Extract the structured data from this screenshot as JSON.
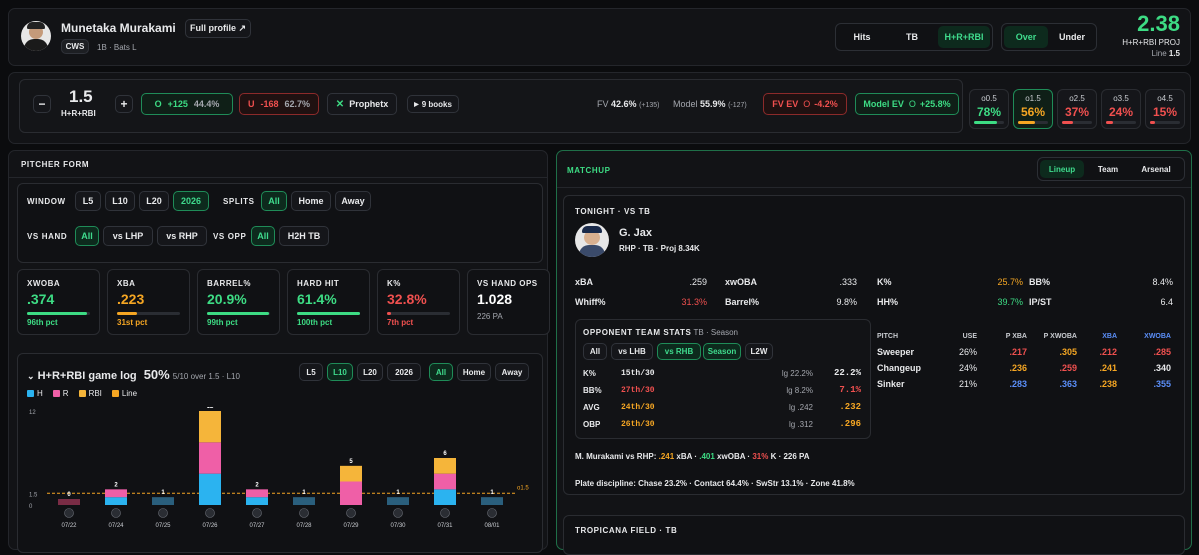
{
  "player": {
    "name": "Munetaka Murakami",
    "full_profile": "Full profile ↗",
    "team": "CWS",
    "pos": "1B · Bats L"
  },
  "market_tabs": [
    "Hits",
    "TB",
    "H+R+RBI"
  ],
  "side_tabs": [
    "Over",
    "Under"
  ],
  "projection": {
    "value": "2.38",
    "label": "H+R+RBI PROJ",
    "line_label": "Line",
    "line_value": "1.5"
  },
  "line": {
    "minus": "−",
    "plus": "+",
    "value": "1.5",
    "stat": "H+R+RBI"
  },
  "odds": {
    "over": {
      "prefix": "O",
      "price": "+125",
      "pct": "44.4%"
    },
    "under": {
      "prefix": "U",
      "price": "-168",
      "pct": "62.7%"
    }
  },
  "book": "Prophetx",
  "books_count": "9 books",
  "fv": {
    "label": "FV",
    "pct": "42.6%",
    "odds": "(+135)"
  },
  "model": {
    "label": "Model",
    "pct": "55.9%",
    "odds": "(-127)"
  },
  "fv_ev": {
    "label": "FV EV",
    "prefix": "O",
    "value": "-4.2%"
  },
  "model_ev": {
    "label": "Model EV",
    "prefix": "O",
    "value": "+25.8%"
  },
  "alt_lines": [
    {
      "label": "o0.5",
      "pct": "78%",
      "fill": 0.78,
      "color": "#3ddc84"
    },
    {
      "label": "o1.5",
      "pct": "56%",
      "fill": 0.56,
      "color": "#f5a623"
    },
    {
      "label": "o2.5",
      "pct": "37%",
      "fill": 0.37,
      "color": "#f0504f"
    },
    {
      "label": "o3.5",
      "pct": "24%",
      "fill": 0.24,
      "color": "#f0504f"
    },
    {
      "label": "o4.5",
      "pct": "15%",
      "fill": 0.15,
      "color": "#f0504f"
    }
  ],
  "pitcher_form": {
    "title": "PITCHER FORM",
    "window_label": "WINDOW",
    "window_opts": [
      "L5",
      "L10",
      "L20",
      "2026"
    ],
    "splits_label": "SPLITS",
    "splits_opts": [
      "All",
      "Home",
      "Away"
    ],
    "vs_hand_label": "VS HAND",
    "vs_hand_opts": [
      "All",
      "vs LHP",
      "vs RHP"
    ],
    "vs_opp_label": "VS OPP",
    "vs_opp_opts": [
      "All",
      "H2H TB"
    ],
    "stats": [
      {
        "label": "XWOBA",
        "value": ".374",
        "pct": "96th pct",
        "fill": 0.96,
        "color": "#3ddc84"
      },
      {
        "label": "XBA",
        "value": ".223",
        "pct": "31st pct",
        "fill": 0.31,
        "color": "#f5a623"
      },
      {
        "label": "BARREL%",
        "value": "20.9%",
        "pct": "99th pct",
        "fill": 0.99,
        "color": "#3ddc84"
      },
      {
        "label": "HARD HIT",
        "value": "61.4%",
        "pct": "100th pct",
        "fill": 1.0,
        "color": "#3ddc84"
      },
      {
        "label": "K%",
        "value": "32.8%",
        "pct": "7th pct",
        "fill": 0.07,
        "color": "#f0504f"
      },
      {
        "label": "VS HAND OPS",
        "value": "1.028",
        "pct": "226 PA"
      }
    ]
  },
  "game_log": {
    "title": "H+R+RBI game log",
    "rate": "50%",
    "detail": "5/10 over 1.5 · L10",
    "window_opts": [
      "L5",
      "L10",
      "L20",
      "2026"
    ],
    "split_opts": [
      "All",
      "Home",
      "Away"
    ],
    "legend": [
      {
        "name": "H",
        "color": "#2bb3f0"
      },
      {
        "name": "R",
        "color": "#ef5fa7"
      },
      {
        "name": "RBI",
        "color": "#f5b53a"
      },
      {
        "name": "Line",
        "color": "#f5a623"
      }
    ],
    "y_ticks": [
      "12",
      "1.5",
      "0"
    ],
    "line_label": "o1.5"
  },
  "chart_data": {
    "type": "bar",
    "stacked": true,
    "categories": [
      "07/22",
      "07/24",
      "07/25",
      "07/26",
      "07/27",
      "07/28",
      "07/29",
      "07/30",
      "07/31",
      "08/01"
    ],
    "series": [
      {
        "name": "H",
        "values": [
          0,
          1,
          1,
          4,
          1,
          1,
          0,
          1,
          2,
          1
        ]
      },
      {
        "name": "R",
        "values": [
          0,
          1,
          0,
          4,
          1,
          0,
          3,
          0,
          2,
          0
        ]
      },
      {
        "name": "RBI",
        "values": [
          0,
          0,
          0,
          4,
          0,
          0,
          2,
          0,
          2,
          0
        ]
      }
    ],
    "totals": [
      "0",
      "2",
      "1",
      "12",
      "2",
      "1",
      "5",
      "1",
      "6",
      "1"
    ],
    "line": 1.5,
    "ylim": [
      0,
      12
    ]
  },
  "matchup": {
    "title": "MATCHUP",
    "tabs": [
      "Lineup",
      "Team",
      "Arsenal"
    ],
    "tonight": "TONIGHT · VS TB",
    "pitcher_name": "G. Jax",
    "pitcher_info": "RHP · TB · Proj 8.34K",
    "stats": [
      {
        "label": "xBA",
        "value": ".259",
        "color": "#e8e9eb"
      },
      {
        "label": "xwOBA",
        "value": ".333",
        "color": "#e8e9eb"
      },
      {
        "label": "K%",
        "value": "25.7%",
        "color": "#f5a623"
      },
      {
        "label": "BB%",
        "value": "8.4%",
        "color": "#e8e9eb"
      },
      {
        "label": "Whiff%",
        "value": "31.3%",
        "color": "#f0504f"
      },
      {
        "label": "Barrel%",
        "value": "9.8%",
        "color": "#e8e9eb"
      },
      {
        "label": "HH%",
        "value": "39.7%",
        "color": "#3ddc84"
      },
      {
        "label": "IP/ST",
        "value": "6.4",
        "color": "#e8e9eb"
      }
    ],
    "opp_title": "OPPONENT TEAM STATS",
    "opp_sub": "TB · Season",
    "opp_opts": [
      "All",
      "vs LHB",
      "vs RHB",
      "Season",
      "L2W"
    ],
    "opp_rows": [
      {
        "label": "K%",
        "rank": "15th/30",
        "lg": "lg 22.2%",
        "value": "22.2%",
        "rank_color": "#e8e9eb",
        "val_color": "#e8e9eb"
      },
      {
        "label": "BB%",
        "rank": "27th/30",
        "lg": "lg 8.2%",
        "value": "7.1%",
        "rank_color": "#f0504f",
        "val_color": "#f0504f"
      },
      {
        "label": "AVG",
        "rank": "24th/30",
        "lg": "lg .242",
        "value": ".232",
        "rank_color": "#f5a623",
        "val_color": "#f5a623"
      },
      {
        "label": "OBP",
        "rank": "26th/30",
        "lg": "lg .312",
        "value": ".296",
        "rank_color": "#f5a623",
        "val_color": "#f5a623"
      }
    ],
    "pitch_headers": [
      "PITCH",
      "USE",
      "P XBA",
      "P XWOBA",
      "XBA",
      "XWOBA"
    ],
    "pitches": [
      {
        "name": "Sweeper",
        "use": "26%",
        "pxba": ".217",
        "pxwoba": ".305",
        "xba": ".212",
        "xwoba": ".285",
        "c": [
          "#f0504f",
          "#f5a623",
          "#f0504f",
          "#f0504f"
        ]
      },
      {
        "name": "Changeup",
        "use": "24%",
        "pxba": ".236",
        "pxwoba": ".259",
        "xba": ".241",
        "xwoba": ".340",
        "c": [
          "#f5a623",
          "#f0504f",
          "#f5a623",
          "#e8e9eb"
        ]
      },
      {
        "name": "Sinker",
        "use": "21%",
        "pxba": ".283",
        "pxwoba": ".363",
        "xba": ".238",
        "xwoba": ".355",
        "c": [
          "#5b8ff9",
          "#5b8ff9",
          "#f5a623",
          "#5b8ff9"
        ]
      }
    ],
    "vs_line": {
      "prefix": "M. Murakami vs RHP:",
      "xba": ".241",
      "xba_l": "xBA ·",
      "xwoba": ".401",
      "xwoba_l": "xwOBA ·",
      "k": "31%",
      "k_l": "K ·",
      "pa": "226 PA"
    },
    "discipline": "Plate discipline: Chase 23.2% · Contact 64.4% · SwStr 13.1% · Zone 41.8%",
    "venue": "TROPICANA FIELD · TB"
  }
}
